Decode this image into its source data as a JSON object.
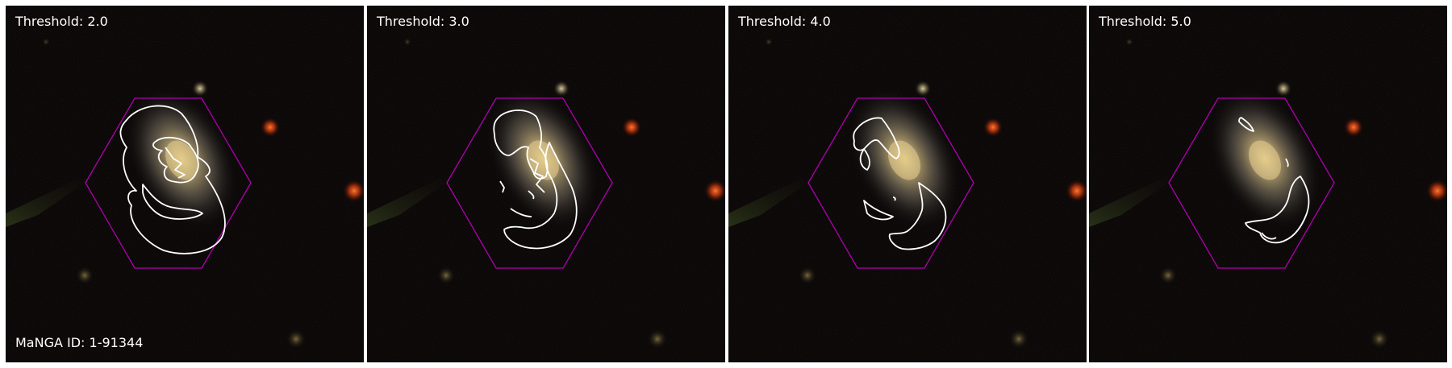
{
  "panels": [
    {
      "label": "Threshold: 2.0"
    },
    {
      "label": "Threshold: 3.0"
    },
    {
      "label": "Threshold: 4.0"
    },
    {
      "label": "Threshold: 5.0"
    }
  ],
  "manga_id_label": "MaNGA ID: 1-91344",
  "colors": {
    "background": "#020202",
    "hexagon": "#b000b0",
    "contour": "#ffffff",
    "galaxy_core": "#d8c07a"
  }
}
